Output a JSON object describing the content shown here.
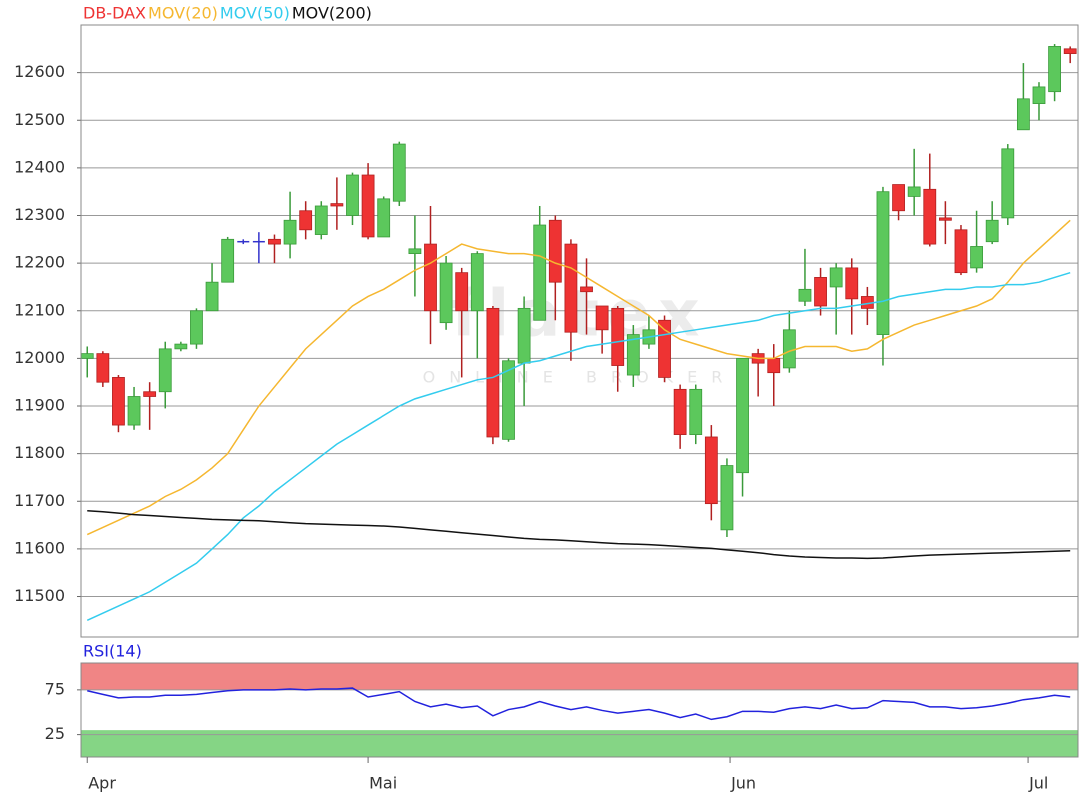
{
  "chart_data": [
    {
      "type": "candlestick",
      "watermark": "flatex",
      "watermark_sub": "ONLINE BROKER",
      "xlim": [
        -0.4,
        63.5
      ],
      "ylim": [
        11415,
        12700
      ],
      "yticks": [
        11500,
        11600,
        11700,
        11800,
        11900,
        12000,
        12100,
        12200,
        12300,
        12400,
        12500,
        12600
      ],
      "grid": true,
      "up_color": "#5cc85c",
      "down_color": "#ee3333",
      "doji_color": "#3333cc",
      "series": [
        {
          "name": "DB-DAX",
          "color": "#ee3333",
          "open": [
            12000,
            12010,
            11960,
            11860,
            11930,
            11930,
            12020,
            12030,
            12100,
            12160,
            12245,
            12245,
            12250,
            12240,
            12310,
            12260,
            12325,
            12300,
            12385,
            12255,
            12330,
            12220,
            12240,
            12075,
            12180,
            12100,
            12105,
            11830,
            11990,
            12080,
            12290,
            12240,
            12150,
            12110,
            12105,
            11965,
            12030,
            12080,
            11935,
            11840,
            11835,
            11640,
            11760,
            12010,
            12000,
            11980,
            12120,
            12170,
            12150,
            12190,
            12130,
            12050,
            12365,
            12340,
            12355,
            12295,
            12270,
            12190,
            12245,
            12295,
            12480,
            12535,
            12560,
            12650
          ],
          "high": [
            12025,
            12015,
            11965,
            11940,
            11950,
            12035,
            12035,
            12105,
            12200,
            12255,
            12250,
            12265,
            12260,
            12350,
            12330,
            12330,
            12380,
            12390,
            12410,
            12340,
            12455,
            12300,
            12320,
            12215,
            12190,
            12225,
            12110,
            12000,
            12130,
            12320,
            12300,
            12250,
            12210,
            12110,
            12110,
            12070,
            12090,
            12090,
            11945,
            11945,
            11860,
            11790,
            12000,
            12020,
            12030,
            12100,
            12230,
            12190,
            12200,
            12210,
            12150,
            12360,
            12365,
            12440,
            12430,
            12330,
            12280,
            12310,
            12330,
            12450,
            12620,
            12580,
            12660,
            12655
          ],
          "low": [
            11960,
            11940,
            11845,
            11850,
            11850,
            11895,
            12015,
            12020,
            12100,
            12160,
            12240,
            12200,
            12200,
            12210,
            12250,
            12250,
            12270,
            12280,
            12250,
            12255,
            12320,
            12130,
            12030,
            12060,
            11960,
            12000,
            11820,
            11825,
            11900,
            12080,
            12080,
            11995,
            12050,
            12010,
            11930,
            11940,
            12020,
            11950,
            11810,
            11820,
            11660,
            11625,
            11710,
            11920,
            11900,
            11970,
            12110,
            12090,
            12050,
            12050,
            12070,
            11985,
            12290,
            12300,
            12235,
            12240,
            12175,
            12180,
            12240,
            12280,
            12480,
            12500,
            12540,
            12620
          ],
          "close": [
            12010,
            11950,
            11860,
            11920,
            11920,
            12020,
            12030,
            12100,
            12160,
            12250,
            12245,
            12245,
            12240,
            12290,
            12270,
            12320,
            12320,
            12385,
            12255,
            12335,
            12450,
            12230,
            12100,
            12200,
            12100,
            12220,
            11835,
            11995,
            12105,
            12280,
            12160,
            12055,
            12140,
            12060,
            11985,
            12050,
            12060,
            11960,
            11840,
            11935,
            11695,
            11775,
            12000,
            11990,
            11970,
            12060,
            12145,
            12110,
            12190,
            12125,
            12105,
            12350,
            12310,
            12360,
            12240,
            12290,
            12180,
            12235,
            12290,
            12440,
            12545,
            12570,
            12655,
            12640
          ]
        },
        {
          "name": "MOV(20)",
          "color": "#f5b730",
          "values": [
            11630,
            11645,
            11660,
            11675,
            11690,
            11710,
            11725,
            11745,
            11770,
            11800,
            11850,
            11900,
            11940,
            11980,
            12020,
            12050,
            12080,
            12110,
            12130,
            12145,
            12165,
            12185,
            12200,
            12220,
            12240,
            12230,
            12225,
            12220,
            12220,
            12215,
            12200,
            12190,
            12170,
            12150,
            12130,
            12110,
            12090,
            12060,
            12040,
            12030,
            12020,
            12010,
            12005,
            12000,
            12000,
            12015,
            12025,
            12025,
            12025,
            12015,
            12020,
            12040,
            12055,
            12070,
            12080,
            12090,
            12100,
            12110,
            12125,
            12160,
            12200,
            12230,
            12260,
            12290
          ]
        },
        {
          "name": "MOV(50)",
          "color": "#33ccee",
          "values": [
            11450,
            11465,
            11480,
            11495,
            11510,
            11530,
            11550,
            11570,
            11600,
            11630,
            11665,
            11690,
            11720,
            11745,
            11770,
            11795,
            11820,
            11840,
            11860,
            11880,
            11900,
            11915,
            11925,
            11935,
            11945,
            11955,
            11960,
            11975,
            11990,
            11995,
            12005,
            12015,
            12025,
            12030,
            12035,
            12040,
            12045,
            12050,
            12055,
            12060,
            12065,
            12070,
            12075,
            12080,
            12090,
            12095,
            12100,
            12105,
            12105,
            12110,
            12115,
            12120,
            12130,
            12135,
            12140,
            12145,
            12145,
            12150,
            12150,
            12155,
            12155,
            12160,
            12170,
            12180
          ]
        },
        {
          "name": "MOV(200)",
          "color": "#111111",
          "values": [
            11680,
            11678,
            11675,
            11672,
            11670,
            11668,
            11666,
            11664,
            11662,
            11661,
            11660,
            11659,
            11657,
            11655,
            11653,
            11652,
            11651,
            11650,
            11649,
            11648,
            11646,
            11643,
            11640,
            11637,
            11634,
            11631,
            11628,
            11625,
            11622,
            11620,
            11619,
            11617,
            11615,
            11613,
            11611,
            11610,
            11609,
            11607,
            11605,
            11603,
            11601,
            11598,
            11595,
            11592,
            11588,
            11585,
            11583,
            11582,
            11581,
            11581,
            11580,
            11581,
            11583,
            11585,
            11587,
            11588,
            11589,
            11590,
            11591,
            11592,
            11593,
            11594,
            11595,
            11596
          ]
        }
      ]
    },
    {
      "type": "line",
      "xlim": [
        -0.4,
        63.5
      ],
      "ylim": [
        0,
        105
      ],
      "yticks": [
        25,
        75
      ],
      "grid": true,
      "zones": [
        {
          "from": 75,
          "to": 105,
          "color": "#f08585"
        },
        {
          "from": 0,
          "to": 30,
          "color": "#85d585"
        }
      ],
      "xticks": [
        {
          "value": 0,
          "label": "Apr"
        },
        {
          "value": 18,
          "label": "Mai"
        },
        {
          "value": 41.2,
          "label": "Jun"
        },
        {
          "value": 60.3,
          "label": "Jul"
        }
      ],
      "series": [
        {
          "name": "RSI(14)",
          "color": "#2222dd",
          "values": [
            74,
            70,
            66,
            67,
            67,
            69,
            69,
            70,
            72,
            74,
            75,
            75,
            75,
            76,
            75,
            76,
            76,
            77,
            67,
            70,
            73,
            62,
            56,
            59,
            55,
            57,
            46,
            53,
            56,
            62,
            57,
            53,
            56,
            52,
            49,
            51,
            53,
            49,
            44,
            48,
            42,
            45,
            51,
            51,
            50,
            54,
            56,
            54,
            58,
            54,
            55,
            63,
            62,
            61,
            56,
            56,
            54,
            55,
            57,
            60,
            64,
            66,
            69,
            67
          ]
        }
      ]
    }
  ]
}
